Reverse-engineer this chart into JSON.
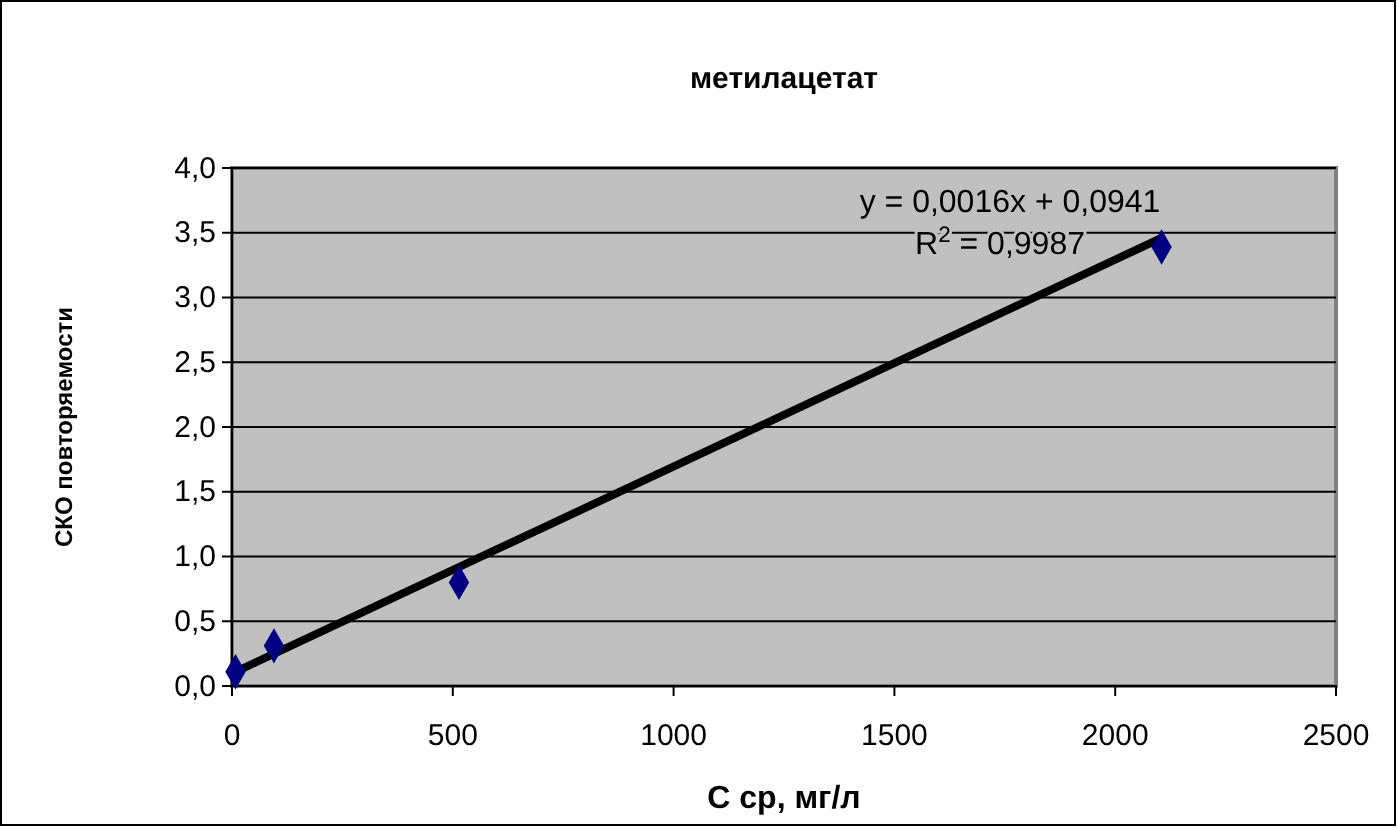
{
  "chart_data": {
    "type": "scatter",
    "title": "метилацетат",
    "xlabel": "С ср, мг/л",
    "ylabel": "СКО повторяемости",
    "series": [
      {
        "color": "#000080",
        "x": [
          8,
          95,
          514,
          2105
        ],
        "values": [
          0.11,
          0.31,
          0.8,
          3.39
        ],
        "marker": "diamond"
      },
      {
        "type": "line",
        "color": "#000000",
        "x": [
          8,
          2105
        ],
        "values": [
          0.11,
          3.46
        ]
      }
    ],
    "annotations": [
      "y = 0,0016x + 0,0941",
      "R$^{2}$ = 0,9987"
    ],
    "xlim": [
      0,
      2500
    ],
    "xticks": [
      0,
      500,
      1000,
      1500,
      2000,
      2500
    ],
    "ylim": [
      0,
      4
    ],
    "yticks": [
      {
        "value": 0,
        "label": "0,0"
      },
      {
        "value": 0.5,
        "label": "0,5"
      },
      {
        "value": 1,
        "label": "1,0"
      },
      {
        "value": 1.5,
        "label": "1,5"
      },
      {
        "value": 2,
        "label": "2,0"
      },
      {
        "value": 2.5,
        "label": "2,5"
      },
      {
        "value": 3,
        "label": "3,0"
      },
      {
        "value": 3.5,
        "label": "3,5"
      },
      {
        "value": 4,
        "label": "4,0"
      }
    ],
    "grid": "y"
  }
}
